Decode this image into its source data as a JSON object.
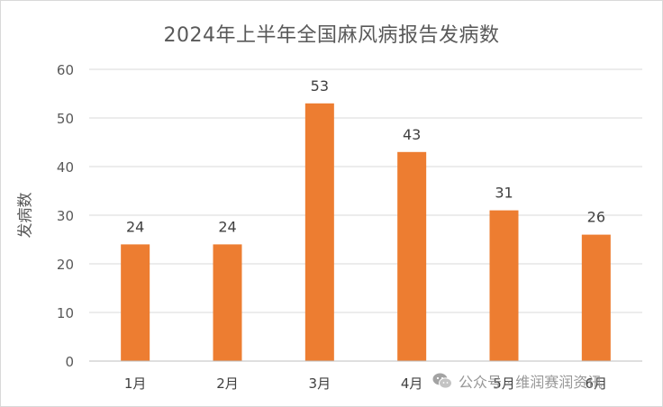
{
  "chart_data": {
    "type": "bar",
    "title": "2024年上半年全国麻风病报告发病数",
    "xlabel": "",
    "ylabel": "发病数",
    "categories": [
      "1月",
      "2月",
      "3月",
      "4月",
      "5月",
      "6月"
    ],
    "values": [
      24,
      24,
      53,
      43,
      31,
      26
    ],
    "ylim": [
      0,
      60
    ],
    "yticks": [
      0,
      10,
      20,
      30,
      40,
      50,
      60
    ],
    "bar_color": "#ED7D31",
    "grid": true,
    "legend": "none",
    "data_labels": true
  },
  "watermark": {
    "text": "公众号 · 维润赛润资讯",
    "icon": "wechat-icon"
  }
}
